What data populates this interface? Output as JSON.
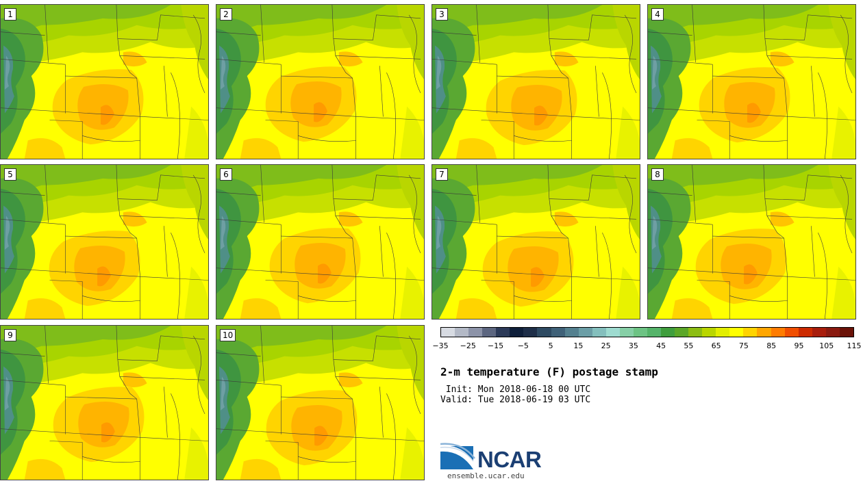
{
  "stamps": [
    {
      "label": "1",
      "variant": 1
    },
    {
      "label": "2",
      "variant": 2
    },
    {
      "label": "3",
      "variant": 3
    },
    {
      "label": "4",
      "variant": 4
    },
    {
      "label": "5",
      "variant": 5
    },
    {
      "label": "6",
      "variant": 6
    },
    {
      "label": "7",
      "variant": 7
    },
    {
      "label": "8",
      "variant": 8
    },
    {
      "label": "9",
      "variant": 9
    },
    {
      "label": "10",
      "variant": 10
    }
  ],
  "colorbar": {
    "colors": [
      "#d7dbe2",
      "#b3b9c6",
      "#8c93a8",
      "#5c6680",
      "#2c3a58",
      "#0f1f3a",
      "#1e2e48",
      "#2e4a62",
      "#3f6178",
      "#54808f",
      "#6b9ea6",
      "#84bfbd",
      "#9edbd0",
      "#86cfa6",
      "#6dc384",
      "#55b46a",
      "#3f9e3d",
      "#5ba728",
      "#8cbd13",
      "#b9d600",
      "#e2ee00",
      "#ffff00",
      "#ffd400",
      "#ffa600",
      "#ff7c00",
      "#f04e00",
      "#cc2a00",
      "#a81d0c",
      "#8a1a10",
      "#6a1208"
    ],
    "tick_labels": [
      "−35",
      "−25",
      "−15",
      "−5",
      "5",
      "15",
      "25",
      "35",
      "45",
      "55",
      "65",
      "75",
      "85",
      "95",
      "105",
      "115"
    ]
  },
  "title": "2-m temperature (F) postage stamp",
  "init_line": " Init: Mon 2018-06-18 00 UTC",
  "valid_line": "Valid: Tue 2018-06-19 03 UTC",
  "logo_text": "NCAR",
  "url": "ensemble.ucar.edu"
}
